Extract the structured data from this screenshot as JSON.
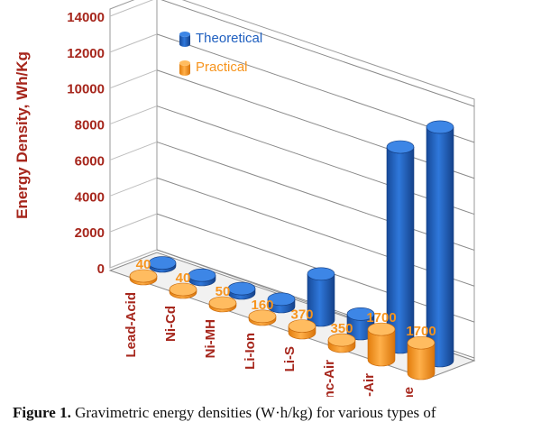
{
  "chart_data": {
    "type": "bar",
    "view": "3d",
    "categories": [
      "Lead-Acid",
      "Ni-Cd",
      "Ni-MH",
      "Li-Ion",
      "Li-S",
      "Zinc-Air",
      "Li-Air",
      "Gasoline"
    ],
    "series": [
      {
        "name": "Theoretical",
        "color": "#1f5fbf",
        "values": [
          170,
          240,
          250,
          410,
          2570,
          1090,
          11140,
          13000
        ]
      },
      {
        "name": "Practical",
        "color": "#f7941d",
        "values": [
          40,
          40,
          50,
          160,
          370,
          350,
          1700,
          1700
        ]
      }
    ],
    "data_labels": [
      "40",
      "40",
      "50",
      "160",
      "370",
      "350",
      "1700",
      "1700"
    ],
    "ylabel": "Energy Density, Wh/Kg",
    "yticks": [
      "0",
      "2000",
      "4000",
      "6000",
      "8000",
      "10000",
      "12000",
      "14000"
    ],
    "ylim": [
      0,
      14000
    ],
    "grid": true,
    "legend_position": "top-left",
    "label_color": "#a6261c"
  },
  "caption": {
    "label": "Figure 1.",
    "text": " Gravimetric energy densities (W·h/kg) for various types of"
  }
}
